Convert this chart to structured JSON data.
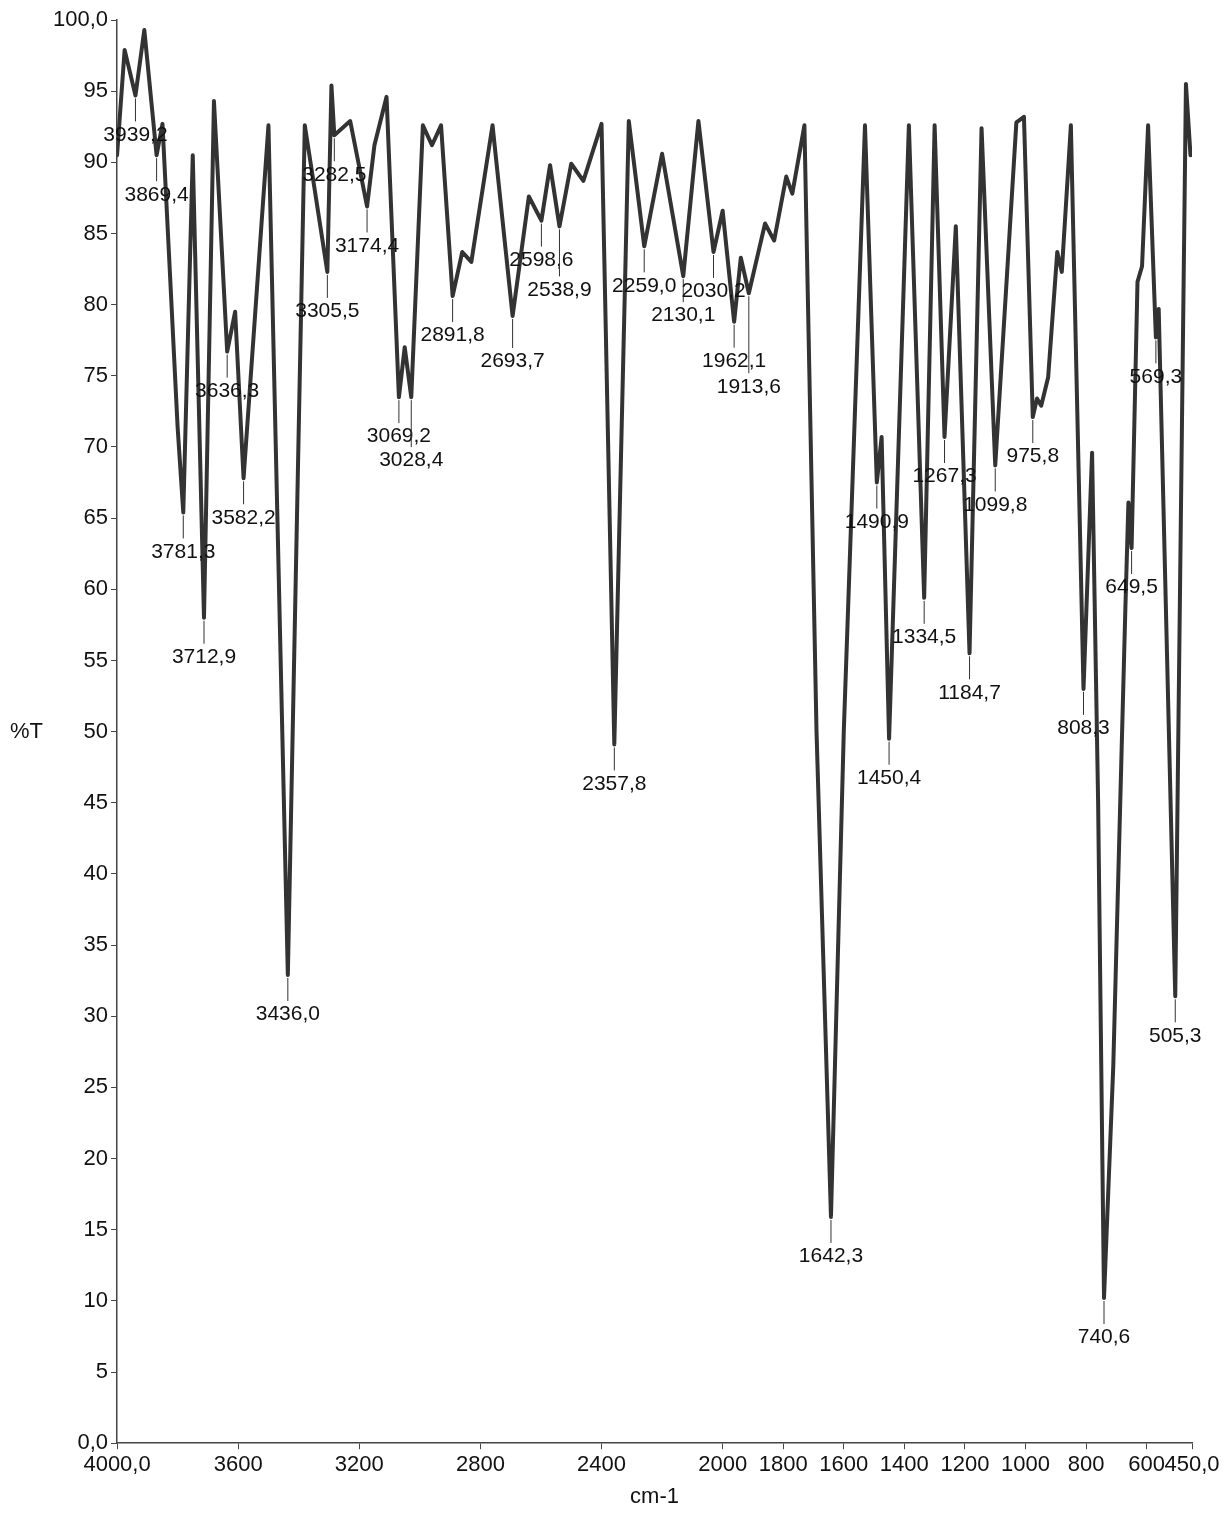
{
  "chart_data": {
    "type": "line",
    "xlabel": "cm-1",
    "ylabel": "%T",
    "x": [
      4000,
      3975,
      3939.2,
      3910,
      3869.4,
      3850,
      3800,
      3781.3,
      3750,
      3712.9,
      3680,
      3636.3,
      3610,
      3582.2,
      3500,
      3436.0,
      3380,
      3305.5,
      3292,
      3282.5,
      3230,
      3174.4,
      3150,
      3110,
      3069.2,
      3050,
      3028.4,
      2990,
      2960,
      2930,
      2891.8,
      2860,
      2830,
      2760,
      2693.7,
      2640,
      2598.6,
      2570,
      2538.9,
      2500,
      2460,
      2400,
      2357.8,
      2310,
      2259.0,
      2200,
      2130.1,
      2080,
      2030.2,
      2000,
      1962.1,
      1940,
      1913.6,
      1860,
      1830,
      1790,
      1770,
      1730,
      1690,
      1642.3,
      1600,
      1530,
      1490.9,
      1475,
      1450.4,
      1385,
      1334.5,
      1300,
      1267.3,
      1230,
      1184.7,
      1145,
      1099.8,
      1030,
      1005,
      975.8,
      962,
      948,
      925,
      895,
      880,
      850,
      808.3,
      780,
      760,
      740.6,
      710,
      670,
      660,
      649.5,
      630,
      615,
      595,
      569.3,
      560,
      505.3,
      470,
      455
    ],
    "series": [
      {
        "color": "#333333",
        "values": [
          90.5,
          97.9,
          94.7,
          99.3,
          90.5,
          92.7,
          71.4,
          65.4,
          90.5,
          58.0,
          94.3,
          76.7,
          79.5,
          67.8,
          92.6,
          32.9,
          92.6,
          82.3,
          95.4,
          91.9,
          92.9,
          86.9,
          91.2,
          94.6,
          73.5,
          77.0,
          73.5,
          92.6,
          91.2,
          92.6,
          80.6,
          83.7,
          83.0,
          92.6,
          79.2,
          87.6,
          85.9,
          89.8,
          85.5,
          89.9,
          88.7,
          92.7,
          49.1,
          92.9,
          84.1,
          90.6,
          82.0,
          92.9,
          83.7,
          86.6,
          78.8,
          83.3,
          80.8,
          85.7,
          84.5,
          89.0,
          87.8,
          92.6,
          50,
          15.9,
          50,
          92.6,
          67.5,
          70.7,
          49.5,
          92.6,
          59.4,
          92.6,
          70.7,
          85.5,
          55.5,
          92.4,
          68.7,
          92.8,
          93.2,
          72.1,
          73.4,
          72.9,
          74.9,
          83.7,
          82.3,
          92.6,
          53.0,
          69.6,
          45,
          10.2,
          26.5,
          58.7,
          66.1,
          62.9,
          81.6,
          82.7,
          92.6,
          77.7,
          79.7,
          31.4,
          95.5,
          90.5
        ]
      }
    ],
    "xlim": [
      4000,
      450
    ],
    "xticks": [
      {
        "value": 4000,
        "label": "4000,0"
      },
      3600,
      3200,
      2800,
      2400,
      2000,
      1800,
      1600,
      1400,
      1200,
      1000,
      800,
      600,
      {
        "value": 450,
        "label": "450,0"
      }
    ],
    "ylim": [
      0,
      100
    ],
    "yticks": [
      {
        "value": 0,
        "label": "0,0"
      },
      5,
      10,
      15,
      20,
      25,
      30,
      35,
      40,
      45,
      50,
      55,
      60,
      65,
      70,
      75,
      80,
      85,
      90,
      95,
      {
        "value": 100,
        "label": "100,0"
      }
    ],
    "grid": false,
    "legend": false,
    "marker": "none",
    "line_style": "solid",
    "annotations": [
      {
        "text": "3939,2",
        "x": 3939.2,
        "y": 94.7
      },
      {
        "text": "3869,4",
        "x": 3869.4,
        "y": 90.5
      },
      {
        "text": "3781,3",
        "x": 3781.3,
        "y": 65.4
      },
      {
        "text": "3712,9",
        "x": 3712.9,
        "y": 58.0
      },
      {
        "text": "3636,3",
        "x": 3636.3,
        "y": 76.7
      },
      {
        "text": "3582,2",
        "x": 3582.2,
        "y": 67.8
      },
      {
        "text": "3436,0",
        "x": 3436.0,
        "y": 32.9
      },
      {
        "text": "3305,5",
        "x": 3305.5,
        "y": 82.3
      },
      {
        "text": "3282,5",
        "x": 3282.5,
        "y": 91.9
      },
      {
        "text": "3174,4",
        "x": 3174.4,
        "y": 86.9
      },
      {
        "text": "3069,2",
        "x": 3069.2,
        "y": 73.5
      },
      {
        "text": "3028,4",
        "x": 3028.4,
        "y": 73.5
      },
      {
        "text": "2891,8",
        "x": 2891.8,
        "y": 80.6
      },
      {
        "text": "2693,7",
        "x": 2693.7,
        "y": 79.2
      },
      {
        "text": "2598,6",
        "x": 2598.6,
        "y": 85.9
      },
      {
        "text": "2538,9",
        "x": 2538.9,
        "y": 85.5
      },
      {
        "text": "2357,8",
        "x": 2357.8,
        "y": 49.1
      },
      {
        "text": "2259,0",
        "x": 2259.0,
        "y": 84.1
      },
      {
        "text": "2130,1",
        "x": 2130.1,
        "y": 82.0
      },
      {
        "text": "2030,2",
        "x": 2030.2,
        "y": 83.7
      },
      {
        "text": "1962,1",
        "x": 1962.1,
        "y": 78.8
      },
      {
        "text": "1913,6",
        "x": 1913.6,
        "y": 80.8
      },
      {
        "text": "1642,3",
        "x": 1642.3,
        "y": 15.9
      },
      {
        "text": "1490,9",
        "x": 1490.9,
        "y": 67.5
      },
      {
        "text": "1450,4",
        "x": 1450.4,
        "y": 49.5
      },
      {
        "text": "1334,5",
        "x": 1334.5,
        "y": 59.4
      },
      {
        "text": "1267,3",
        "x": 1267.3,
        "y": 70.7
      },
      {
        "text": "1184,7",
        "x": 1184.7,
        "y": 55.5
      },
      {
        "text": "1099,8",
        "x": 1099.8,
        "y": 68.7
      },
      {
        "text": "975,8",
        "x": 975.8,
        "y": 72.1
      },
      {
        "text": "808,3",
        "x": 808.3,
        "y": 53.0
      },
      {
        "text": "740,6",
        "x": 740.6,
        "y": 10.2
      },
      {
        "text": "649,5",
        "x": 649.5,
        "y": 62.9
      },
      {
        "text": "569,3",
        "x": 569.3,
        "y": 77.7
      },
      {
        "text": "505,3",
        "x": 505.3,
        "y": 31.4
      }
    ]
  }
}
